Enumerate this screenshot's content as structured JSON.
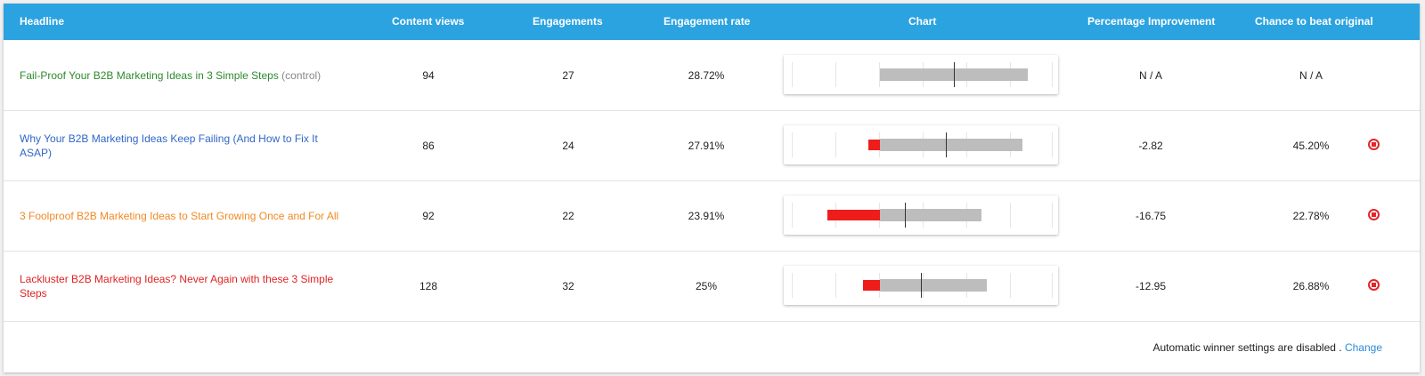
{
  "table": {
    "columns": {
      "headline": "Headline",
      "content_views": "Content views",
      "engagements": "Engagements",
      "engagement_rate": "Engagement rate",
      "chart": "Chart",
      "percentage_improvement": "Percentage Improvement",
      "chance_to_beat": "Chance to beat original"
    },
    "rows": [
      {
        "headline": "Fail-Proof Your B2B Marketing Ideas in 3 Simple Steps",
        "suffix": "(control)",
        "headline_color": "#2d8a2d",
        "content_views": "94",
        "engagements": "27",
        "engagement_rate": "28.72%",
        "percentage_improvement": "N / A",
        "chance_to_beat": "N / A",
        "chart_values": {
          "low": 0.35,
          "high": 0.89,
          "mark": 0.62,
          "red_from": null
        },
        "stop_icon": false
      },
      {
        "headline": "Why Your B2B Marketing Ideas Keep Failing (And How to Fix It ASAP)",
        "suffix": "",
        "headline_color": "#2f67c8",
        "content_views": "86",
        "engagements": "24",
        "engagement_rate": "27.91%",
        "percentage_improvement": "-2.82",
        "chance_to_beat": "45.20%",
        "chart_values": {
          "low": 0.35,
          "high": 0.87,
          "mark": 0.59,
          "red_from": 0.31
        },
        "stop_icon": true
      },
      {
        "headline": "3 Foolproof B2B Marketing Ideas to Start Growing Once and For All",
        "suffix": "",
        "headline_color": "#f08a24",
        "content_views": "92",
        "engagements": "22",
        "engagement_rate": "23.91%",
        "percentage_improvement": "-16.75",
        "chance_to_beat": "22.78%",
        "chart_values": {
          "low": 0.35,
          "high": 0.72,
          "mark": 0.44,
          "red_from": 0.16
        },
        "stop_icon": true
      },
      {
        "headline": "Lackluster B2B Marketing Ideas? Never Again with these 3 Simple Steps",
        "suffix": "",
        "headline_color": "#e02424",
        "content_views": "128",
        "engagements": "32",
        "engagement_rate": "25%",
        "percentage_improvement": "-12.95",
        "chance_to_beat": "26.88%",
        "chart_values": {
          "low": 0.35,
          "high": 0.74,
          "mark": 0.5,
          "red_from": 0.29
        },
        "stop_icon": true
      }
    ]
  },
  "footer": {
    "text": "Automatic winner settings are disabled .",
    "link": "Change"
  },
  "icons": {
    "stop": "stop-circle-icon"
  },
  "colors": {
    "header_bg": "#2ba3e0",
    "grey_bar": "#bdbdbd",
    "red_bar": "#ef1c1c"
  }
}
